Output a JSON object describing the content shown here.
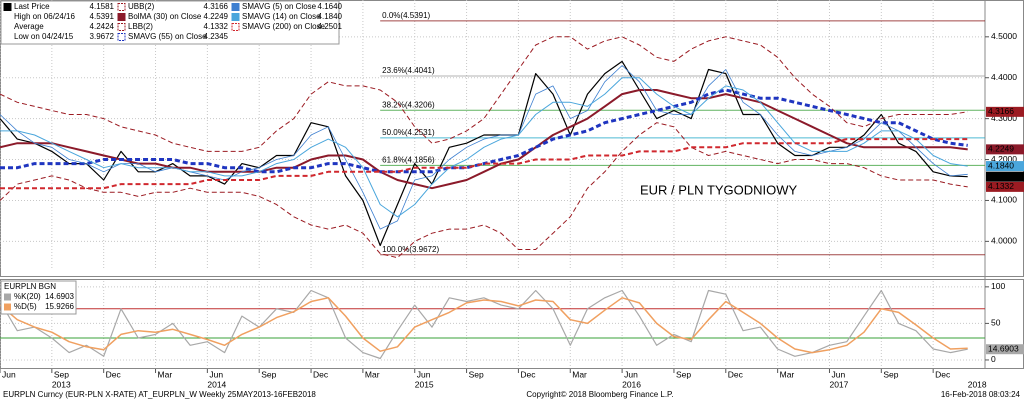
{
  "chart_data": [
    {
      "type": "line",
      "annotation": "EUR / PLN TYGODNIOWY",
      "x": [
        "2013-06",
        "2013-07",
        "2013-08",
        "2013-09",
        "2013-10",
        "2013-11",
        "2013-12",
        "2014-01",
        "2014-02",
        "2014-03",
        "2014-04",
        "2014-05",
        "2014-06",
        "2014-07",
        "2014-08",
        "2014-09",
        "2014-10",
        "2014-11",
        "2014-12",
        "2015-01",
        "2015-02",
        "2015-03",
        "2015-04",
        "2015-05",
        "2015-06",
        "2015-07",
        "2015-08",
        "2015-09",
        "2015-10",
        "2015-11",
        "2015-12",
        "2016-01",
        "2016-02",
        "2016-03",
        "2016-04",
        "2016-05",
        "2016-06",
        "2016-07",
        "2016-08",
        "2016-09",
        "2016-10",
        "2016-11",
        "2016-12",
        "2017-01",
        "2017-02",
        "2017-03",
        "2017-04",
        "2017-05",
        "2017-06",
        "2017-07",
        "2017-08",
        "2017-09",
        "2017-10",
        "2017-11",
        "2017-12",
        "2018-01",
        "2018-02"
      ],
      "xlim": [
        "2013-06",
        "2018-03"
      ],
      "ylim": [
        3.93,
        4.59
      ],
      "yticks": [
        {
          "value": 4.0,
          "label": "4.0000"
        },
        {
          "value": 4.1,
          "label": "4.1000"
        },
        {
          "value": 4.2,
          "label": "4.2000"
        },
        {
          "value": 4.3,
          "label": "4.3000"
        },
        {
          "value": 4.4,
          "label": "4.4000"
        },
        {
          "value": 4.5,
          "label": "4.5000"
        }
      ],
      "grid": true,
      "stats": [
        {
          "label": "High on 06/24/16",
          "value": "4.5391"
        },
        {
          "label": "Average",
          "value": "4.2424"
        },
        {
          "label": "Low on 04/24/15",
          "value": "3.9672"
        }
      ],
      "fib_start": "2015-04",
      "fib_levels": [
        {
          "value": 4.5391,
          "label": "0.0%(4.5391)",
          "color": "#8b1a1a"
        },
        {
          "value": 4.4041,
          "label": "23.6%(4.4041)",
          "color": "#a0a0a0"
        },
        {
          "value": 4.3206,
          "label": "38.2%(4.3206)",
          "color": "#3aa03a"
        },
        {
          "value": 4.2531,
          "label": "50.0%(4.2531)",
          "color": "#20a8c8"
        },
        {
          "value": 4.1856,
          "label": "61.8%(4.1856)",
          "color": "#3aa03a"
        },
        {
          "value": 3.9672,
          "label": "100.0%(3.9672)",
          "color": "#8b1a1a"
        }
      ],
      "series": [
        {
          "name": "Last Price",
          "legend_value": "4.1581",
          "color": "#000000",
          "width": 1.2,
          "dash": false,
          "badge": true,
          "values": [
            4.3,
            4.25,
            4.24,
            4.22,
            4.19,
            4.19,
            4.15,
            4.22,
            4.17,
            4.17,
            4.19,
            4.16,
            4.16,
            4.14,
            4.19,
            4.18,
            4.21,
            4.21,
            4.29,
            4.28,
            4.16,
            4.1,
            3.99,
            4.09,
            4.19,
            4.14,
            4.23,
            4.24,
            4.26,
            4.26,
            4.26,
            4.41,
            4.36,
            4.26,
            4.36,
            4.41,
            4.44,
            4.37,
            4.3,
            4.32,
            4.3,
            4.42,
            4.41,
            4.31,
            4.31,
            4.24,
            4.21,
            4.21,
            4.23,
            4.23,
            4.26,
            4.31,
            4.24,
            4.22,
            4.17,
            4.16,
            4.1581
          ]
        },
        {
          "name": "UBB(2)",
          "legend_value": "4.3166",
          "color": "#9b1b22",
          "width": 1,
          "dash": true,
          "badge": true,
          "values": [
            4.36,
            4.34,
            4.33,
            4.32,
            4.31,
            4.31,
            4.3,
            4.28,
            4.27,
            4.26,
            4.24,
            4.23,
            4.22,
            4.22,
            4.22,
            4.23,
            4.27,
            4.3,
            4.36,
            4.39,
            4.38,
            4.38,
            4.37,
            4.34,
            4.28,
            4.24,
            4.25,
            4.27,
            4.3,
            4.36,
            4.42,
            4.48,
            4.5,
            4.5,
            4.47,
            4.49,
            4.5,
            4.48,
            4.45,
            4.44,
            4.47,
            4.49,
            4.5,
            4.49,
            4.48,
            4.45,
            4.4,
            4.36,
            4.33,
            4.29,
            4.28,
            4.3,
            4.31,
            4.31,
            4.31,
            4.31,
            4.3166
          ]
        },
        {
          "name": "BolMA (30) on Close",
          "legend_value": "4.2249",
          "color": "#8b1a2a",
          "width": 2,
          "dash": false,
          "badge": true,
          "values": [
            4.23,
            4.24,
            4.24,
            4.24,
            4.23,
            4.22,
            4.21,
            4.2,
            4.19,
            4.19,
            4.18,
            4.18,
            4.17,
            4.17,
            4.17,
            4.17,
            4.18,
            4.18,
            4.2,
            4.21,
            4.21,
            4.2,
            4.17,
            4.15,
            4.14,
            4.13,
            4.14,
            4.15,
            4.17,
            4.19,
            4.2,
            4.23,
            4.26,
            4.28,
            4.3,
            4.33,
            4.36,
            4.37,
            4.37,
            4.36,
            4.35,
            4.35,
            4.36,
            4.35,
            4.34,
            4.32,
            4.3,
            4.28,
            4.26,
            4.24,
            4.23,
            4.23,
            4.23,
            4.23,
            4.23,
            4.23,
            4.2249
          ]
        },
        {
          "name": "LBB(2)",
          "legend_value": "4.1332",
          "color": "#9b1b22",
          "width": 1,
          "dash": true,
          "badge": true,
          "values": [
            4.1,
            4.14,
            4.15,
            4.16,
            4.15,
            4.13,
            4.12,
            4.12,
            4.11,
            4.12,
            4.12,
            4.13,
            4.12,
            4.12,
            4.12,
            4.11,
            4.09,
            4.06,
            4.04,
            4.03,
            4.04,
            4.02,
            3.97,
            3.96,
            4.0,
            4.02,
            4.03,
            4.03,
            4.04,
            4.02,
            3.98,
            3.98,
            4.02,
            4.06,
            4.13,
            4.17,
            4.22,
            4.26,
            4.29,
            4.28,
            4.23,
            4.21,
            4.22,
            4.21,
            4.2,
            4.19,
            4.2,
            4.2,
            4.19,
            4.19,
            4.18,
            4.16,
            4.15,
            4.15,
            4.15,
            4.14,
            4.1332
          ]
        },
        {
          "name": "SMAVG (55) on Close",
          "legend_value": "4.2345",
          "color": "#1f35c0",
          "width": 3,
          "dash": true,
          "badge": false,
          "values": [
            4.18,
            4.18,
            4.19,
            4.19,
            4.19,
            4.19,
            4.2,
            4.2,
            4.2,
            4.2,
            4.2,
            4.19,
            4.19,
            4.18,
            4.18,
            4.17,
            4.17,
            4.18,
            4.18,
            4.19,
            4.19,
            4.18,
            4.17,
            4.17,
            4.17,
            4.17,
            4.18,
            4.18,
            4.19,
            4.2,
            4.21,
            4.23,
            4.25,
            4.26,
            4.27,
            4.29,
            4.3,
            4.31,
            4.32,
            4.33,
            4.34,
            4.36,
            4.37,
            4.36,
            4.35,
            4.35,
            4.34,
            4.33,
            4.32,
            4.31,
            4.3,
            4.29,
            4.29,
            4.27,
            4.25,
            4.24,
            4.2345
          ]
        },
        {
          "name": "SMAVG (5) on Close",
          "legend_value": "4.1640",
          "color": "#3d7fd0",
          "width": 0.8,
          "dash": false,
          "badge": false,
          "values": [
            4.31,
            4.27,
            4.24,
            4.23,
            4.2,
            4.19,
            4.17,
            4.19,
            4.19,
            4.17,
            4.18,
            4.17,
            4.16,
            4.15,
            4.17,
            4.18,
            4.2,
            4.21,
            4.26,
            4.28,
            4.2,
            4.12,
            4.03,
            4.05,
            4.15,
            4.16,
            4.2,
            4.23,
            4.25,
            4.26,
            4.26,
            4.36,
            4.38,
            4.3,
            4.32,
            4.39,
            4.43,
            4.39,
            4.32,
            4.31,
            4.31,
            4.38,
            4.42,
            4.34,
            4.31,
            4.26,
            4.22,
            4.21,
            4.22,
            4.23,
            4.25,
            4.29,
            4.27,
            4.23,
            4.19,
            4.16,
            4.164
          ]
        },
        {
          "name": "SMAVG (14) on Close",
          "legend_value": "4.1840",
          "color": "#4aa6dc",
          "width": 1,
          "dash": false,
          "badge": true,
          "values": [
            4.27,
            4.27,
            4.26,
            4.24,
            4.22,
            4.2,
            4.18,
            4.19,
            4.18,
            4.18,
            4.18,
            4.17,
            4.17,
            4.16,
            4.16,
            4.17,
            4.19,
            4.2,
            4.23,
            4.25,
            4.23,
            4.18,
            4.09,
            4.06,
            4.09,
            4.14,
            4.18,
            4.2,
            4.23,
            4.25,
            4.26,
            4.31,
            4.34,
            4.34,
            4.33,
            4.36,
            4.4,
            4.4,
            4.36,
            4.33,
            4.31,
            4.35,
            4.38,
            4.37,
            4.34,
            4.29,
            4.24,
            4.22,
            4.22,
            4.22,
            4.24,
            4.27,
            4.27,
            4.25,
            4.21,
            4.19,
            4.184
          ]
        },
        {
          "name": "SMAVG (200) on Close",
          "legend_value": "4.2501",
          "color": "#d0282e",
          "width": 2,
          "dash": true,
          "badge": false,
          "values": [
            4.13,
            4.13,
            4.13,
            4.13,
            4.13,
            4.13,
            4.13,
            4.14,
            4.14,
            4.14,
            4.14,
            4.14,
            4.15,
            4.15,
            4.15,
            4.15,
            4.16,
            4.16,
            4.16,
            4.17,
            4.17,
            4.17,
            4.17,
            4.17,
            4.18,
            4.18,
            4.18,
            4.18,
            4.19,
            4.19,
            4.19,
            4.2,
            4.2,
            4.2,
            4.21,
            4.21,
            4.21,
            4.22,
            4.22,
            4.22,
            4.23,
            4.23,
            4.23,
            4.24,
            4.24,
            4.24,
            4.24,
            4.24,
            4.24,
            4.25,
            4.25,
            4.25,
            4.25,
            4.25,
            4.25,
            4.25,
            4.2501
          ]
        }
      ]
    },
    {
      "type": "line",
      "title": "EURPLN BGN",
      "x": [
        "2013-06",
        "2013-07",
        "2013-08",
        "2013-09",
        "2013-10",
        "2013-11",
        "2013-12",
        "2014-01",
        "2014-02",
        "2014-03",
        "2014-04",
        "2014-05",
        "2014-06",
        "2014-07",
        "2014-08",
        "2014-09",
        "2014-10",
        "2014-11",
        "2014-12",
        "2015-01",
        "2015-02",
        "2015-03",
        "2015-04",
        "2015-05",
        "2015-06",
        "2015-07",
        "2015-08",
        "2015-09",
        "2015-10",
        "2015-11",
        "2015-12",
        "2016-01",
        "2016-02",
        "2016-03",
        "2016-04",
        "2016-05",
        "2016-06",
        "2016-07",
        "2016-08",
        "2016-09",
        "2016-10",
        "2016-11",
        "2016-12",
        "2017-01",
        "2017-02",
        "2017-03",
        "2017-04",
        "2017-05",
        "2017-06",
        "2017-07",
        "2017-08",
        "2017-09",
        "2017-10",
        "2017-11",
        "2017-12",
        "2018-01",
        "2018-02"
      ],
      "xlim": [
        "2013-06",
        "2018-03"
      ],
      "xticks": [
        {
          "value": "2013-06",
          "label": "Jun"
        },
        {
          "value": "2013-09",
          "label": "Sep"
        },
        {
          "value": "2013-12",
          "label": "Dec"
        },
        {
          "value": "2014-03",
          "label": "Mar"
        },
        {
          "value": "2014-06",
          "label": "Jun"
        },
        {
          "value": "2014-09",
          "label": "Sep"
        },
        {
          "value": "2014-12",
          "label": "Dec"
        },
        {
          "value": "2015-03",
          "label": "Mar"
        },
        {
          "value": "2015-06",
          "label": "Jun"
        },
        {
          "value": "2015-09",
          "label": "Sep"
        },
        {
          "value": "2015-12",
          "label": "Dec"
        },
        {
          "value": "2016-03",
          "label": "Mar"
        },
        {
          "value": "2016-06",
          "label": "Jun"
        },
        {
          "value": "2016-09",
          "label": "Sep"
        },
        {
          "value": "2016-12",
          "label": "Dec"
        },
        {
          "value": "2017-03",
          "label": "Mar"
        },
        {
          "value": "2017-06",
          "label": "Jun"
        },
        {
          "value": "2017-09",
          "label": "Sep"
        },
        {
          "value": "2017-12",
          "label": "Dec"
        }
      ],
      "year_labels": [
        {
          "value": "2013-09",
          "label": "2013"
        },
        {
          "value": "2014-06",
          "label": "2014"
        },
        {
          "value": "2015-06",
          "label": "2015"
        },
        {
          "value": "2016-06",
          "label": "2016"
        },
        {
          "value": "2017-06",
          "label": "2017"
        },
        {
          "value": "2018-02",
          "label": "2018"
        }
      ],
      "ylim": [
        -11,
        108
      ],
      "yticks": [
        0,
        50,
        100
      ],
      "grid": true,
      "levels": [
        {
          "value": 70,
          "color": "#c03030"
        },
        {
          "value": 30,
          "color": "#3aa03a"
        }
      ],
      "series": [
        {
          "name": "%K(20)",
          "legend_value": "14.6903",
          "color": "#a8a8a8",
          "width": 1.2,
          "dash": false,
          "badge": true,
          "values": [
            80,
            40,
            45,
            30,
            10,
            20,
            5,
            70,
            30,
            35,
            50,
            20,
            25,
            10,
            60,
            45,
            70,
            65,
            95,
            85,
            30,
            10,
            2,
            40,
            75,
            45,
            85,
            80,
            85,
            75,
            70,
            95,
            70,
            20,
            70,
            85,
            95,
            60,
            20,
            35,
            25,
            95,
            90,
            40,
            45,
            15,
            5,
            10,
            20,
            25,
            60,
            95,
            50,
            40,
            15,
            10,
            14.6903
          ]
        },
        {
          "name": "%D(5)",
          "legend_value": "15.9266",
          "color": "#f0a060",
          "width": 1.5,
          "dash": false,
          "badge": false,
          "values": [
            75,
            55,
            45,
            38,
            25,
            18,
            14,
            35,
            40,
            38,
            42,
            35,
            28,
            20,
            35,
            45,
            58,
            66,
            80,
            85,
            60,
            30,
            12,
            18,
            45,
            55,
            65,
            78,
            82,
            80,
            74,
            82,
            80,
            55,
            50,
            68,
            85,
            78,
            50,
            32,
            28,
            55,
            80,
            65,
            50,
            30,
            15,
            10,
            14,
            20,
            38,
            70,
            65,
            48,
            30,
            15,
            15.9266
          ]
        }
      ]
    }
  ],
  "footer": {
    "left": "EURPLN Curncy (EUR-PLN X-RATE) AT_EURPLN_W  Weekly 25MAY2013-16FEB2018",
    "center": "Copyright© 2018 Bloomberg Finance L.P.",
    "right": "16-Feb-2018 08:03:24"
  }
}
